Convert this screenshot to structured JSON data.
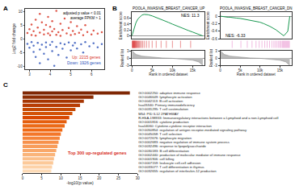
{
  "chart_data": [
    {
      "panel": "A",
      "type": "scatter",
      "ylabel": "Log2 fold change",
      "annotations": [
        "adjusted p value < 0.01",
        "average FPKM > 1"
      ],
      "xlim": [
        2.8,
        6.6
      ],
      "xticks": [
        3,
        4,
        5,
        6
      ],
      "ylim": [
        -11,
        11
      ],
      "yticks": [
        -10,
        -5,
        0,
        5,
        10
      ],
      "series": [
        {
          "name": "Up: 2215 genes",
          "color": "#d7301f",
          "x": [
            2.9,
            3.0,
            3.1,
            3.1,
            3.2,
            3.3,
            3.3,
            3.4,
            3.5,
            3.5,
            3.6,
            3.7,
            3.7,
            3.8,
            3.9,
            3.9,
            4.0,
            4.0,
            4.1,
            4.1,
            4.2,
            4.3,
            4.3,
            4.4,
            4.5,
            4.5,
            4.6,
            4.7,
            4.8,
            4.9,
            5.0,
            5.0,
            5.1,
            5.2,
            5.3,
            5.4,
            5.5,
            5.6,
            5.7,
            5.8,
            6.0,
            6.1,
            6.3,
            6.5
          ],
          "values": [
            2.1,
            3.5,
            1.4,
            5.2,
            2.8,
            7.0,
            1.2,
            4.1,
            2.3,
            9.1,
            6.0,
            1.6,
            3.3,
            5.1,
            2.0,
            8.0,
            1.3,
            4.4,
            2.7,
            6.5,
            3.6,
            1.5,
            10.2,
            2.4,
            5.5,
            1.1,
            3.2,
            7.4,
            2.0,
            4.0,
            1.4,
            6.1,
            2.9,
            1.8,
            4.6,
            2.2,
            3.4,
            1.3,
            5.0,
            2.5,
            1.6,
            3.0,
            1.9,
            2.4
          ]
        },
        {
          "name": "Down: 1926 genes",
          "color": "#2b50b8",
          "x": [
            2.9,
            3.0,
            3.1,
            3.2,
            3.2,
            3.3,
            3.4,
            3.5,
            3.5,
            3.6,
            3.7,
            3.8,
            3.8,
            3.9,
            4.0,
            4.1,
            4.1,
            4.2,
            4.3,
            4.4,
            4.5,
            4.6,
            4.7,
            4.8,
            4.9,
            5.0,
            5.1,
            5.2,
            5.3,
            5.5,
            5.6,
            5.7,
            5.9,
            6.1,
            6.3,
            6.5
          ],
          "values": [
            -1.8,
            -3.2,
            -1.2,
            -4.8,
            -2.5,
            -6.6,
            -1.5,
            -3.9,
            -8.9,
            -2.1,
            -5.4,
            -1.3,
            -3.0,
            -7.5,
            -2.2,
            -4.5,
            -1.1,
            -9.8,
            -2.9,
            -5.9,
            -1.6,
            -3.6,
            -2.0,
            -6.8,
            -1.3,
            -4.2,
            -2.4,
            -1.5,
            -3.5,
            -2.0,
            -5.0,
            -1.2,
            -2.7,
            -1.6,
            -3.1,
            -1.9
          ]
        }
      ]
    },
    {
      "panel": "B",
      "type": "gsea",
      "title": "POOLA_INVASIVE_BREAST_CANCER_UP",
      "annotations": [
        "NES: 11.3"
      ],
      "xlabel": "Rank in ordered dataset",
      "ylabel": "Enrichment score",
      "ranked_label": "Ranked list",
      "color": "#1a9850",
      "x": [
        0,
        500,
        1000,
        1500,
        2000,
        2500,
        3000,
        4000,
        5000,
        6000,
        7500,
        9000,
        10000,
        11000,
        12500,
        14000,
        15000,
        16000,
        17000,
        17500
      ],
      "values": [
        0,
        0.25,
        0.45,
        0.58,
        0.66,
        0.71,
        0.73,
        0.72,
        0.68,
        0.63,
        0.55,
        0.46,
        0.4,
        0.34,
        0.26,
        0.18,
        0.13,
        0.08,
        0.03,
        0
      ],
      "hits": [
        50,
        120,
        200,
        260,
        330,
        400,
        480,
        560,
        650,
        720,
        800,
        900,
        1000,
        1100,
        1250,
        1400,
        1550,
        1700,
        1900,
        2100,
        2400,
        2700,
        3100,
        3600,
        4200,
        5000,
        6000,
        7200,
        8500,
        10000,
        12000,
        14500
      ],
      "ranked_x": [
        0,
        1000,
        2500,
        5000,
        7500,
        10000,
        12500,
        15000,
        16500,
        17500
      ],
      "ranked_values": [
        3,
        1.5,
        0.8,
        0.3,
        0.05,
        -0.1,
        -0.4,
        -0.9,
        -1.6,
        -3
      ],
      "xlim": [
        0,
        18000
      ],
      "xticks": [
        0,
        {
          "value": 5000,
          "label": "5k"
        },
        {
          "value": 10000,
          "label": "10k"
        },
        {
          "value": 15000,
          "label": "15k"
        }
      ],
      "ylim": [
        -0.1,
        0.8
      ],
      "yticks": [
        0,
        0.2,
        0.4,
        0.6
      ],
      "ranked_ylim": [
        -3,
        3
      ],
      "ranked_yticks": [
        -3,
        0,
        3
      ]
    },
    {
      "type": "gsea",
      "title": "POOLA_INVASIVE_BREAST_CANCER_DN",
      "annotations": [
        "NES: -6.33"
      ],
      "xlabel": "Rank in ordered dataset",
      "ylabel": "Enrichment score",
      "ranked_label": "Ranked list",
      "color": "#1a9850",
      "x": [
        0,
        500,
        1000,
        1500,
        2000,
        2500,
        3000,
        4000,
        5000,
        6000,
        7500,
        9000,
        10000,
        11000,
        12500,
        14000,
        15000,
        16000,
        17000,
        17500
      ],
      "values": [
        0,
        -0.01,
        -0.02,
        -0.02,
        -0.03,
        -0.03,
        -0.04,
        -0.05,
        -0.06,
        -0.08,
        -0.1,
        -0.13,
        -0.16,
        -0.2,
        -0.27,
        -0.36,
        -0.44,
        -0.52,
        -0.4,
        0
      ],
      "hits": [
        3000,
        5200,
        6800,
        8000,
        9000,
        9800,
        10500,
        11200,
        11800,
        12400,
        13000,
        13500,
        13900,
        14300,
        14700,
        15000,
        15300,
        15600,
        15800,
        16000,
        16200,
        16400,
        16600,
        16800,
        17000,
        17200,
        17400
      ],
      "ranked_x": [
        0,
        1000,
        2500,
        5000,
        7500,
        10000,
        12500,
        15000,
        16500,
        17500
      ],
      "ranked_values": [
        3,
        1.5,
        0.8,
        0.3,
        0.05,
        -0.1,
        -0.4,
        -0.9,
        -1.6,
        -3
      ],
      "xlim": [
        0,
        18000
      ],
      "xticks": [
        0,
        {
          "value": 5000,
          "label": "5k"
        },
        {
          "value": 10000,
          "label": "10k"
        },
        {
          "value": 15000,
          "label": "15k"
        }
      ],
      "ylim": [
        -0.6,
        0.1
      ],
      "yticks": [
        -0.6,
        -0.4,
        -0.2,
        0
      ],
      "ranked_ylim": [
        -3,
        3
      ],
      "ranked_yticks": [
        -3,
        0,
        3
      ]
    },
    {
      "panel": "C",
      "type": "bar",
      "orientation": "horizontal",
      "xlabel": "-log10(p value)",
      "annotations": [
        "Top 300 up-regulated genes"
      ],
      "categories": [
        "GO:0002250: adaptive immune response",
        "GO:0046649: lymphocyte activation",
        "GO:0042113: B cell activation",
        "hsa05340: Primary immunodeficiency",
        "GO:0031295: T cell costimulation",
        "M54: PID IL12 2PATHWAY",
        "R-HSA-198933: Immunoregulatory interactions between a Lymphoid and a non-Lymphoid cell",
        "GO:0001816: cytokine production",
        "hsa04060: Cytokine-cytokine receptor interaction",
        "GO:0050854: regulation of antigen receptor-mediated signaling pathway",
        "GO:0045058: T cell selection",
        "GO:0072676: lymphocyte migration",
        "GO:0002683: negative regulation of immune system process",
        "GO:0032496: response to lipopolysaccharide",
        "GO:0030183: B cell differentiation",
        "GO:0002440: production of molecular mediator of immune response",
        "GO:0001906: cell killing",
        "GO:0007159: leukocyte cell-cell adhesion",
        "GO:0033077: T cell differentiation in thymus",
        "GO:0032655: regulation of interleukin-12 production"
      ],
      "values": [
        28,
        18.5,
        16,
        15,
        13.8,
        13,
        12.2,
        11.5,
        11,
        10.4,
        10,
        9.7,
        9.4,
        9.1,
        8.8,
        8.5,
        8.2,
        8,
        7.7,
        7.5
      ],
      "colors": [
        "#7f2704",
        "#8c2d04",
        "#a63603",
        "#b83d05",
        "#c54a06",
        "#d35308",
        "#d94801",
        "#e55e0e",
        "#ec6a17",
        "#f16913",
        "#f3772a",
        "#f5843a",
        "#f7914b",
        "#f89d5b",
        "#f9a86a",
        "#fab47a",
        "#fbbf8a",
        "#fcc999",
        "#fdd2a8",
        "#fddbb7"
      ],
      "xlim": [
        0,
        30
      ],
      "xticks": [
        0,
        5,
        10,
        15,
        20,
        25,
        30
      ]
    }
  ]
}
